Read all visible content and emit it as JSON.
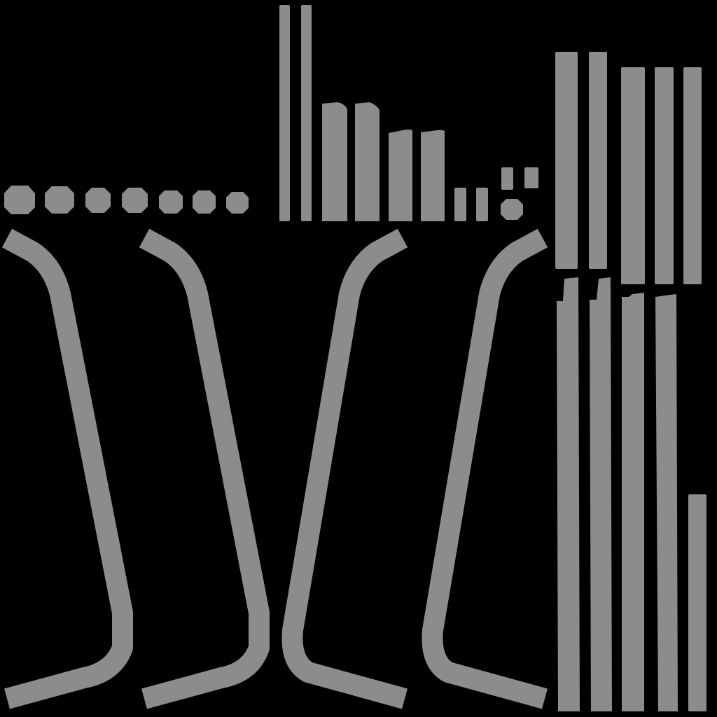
{
  "colors": {
    "background": "#000000",
    "island": "#8c8c8c"
  },
  "texture": {
    "kind": "uv-island-layout",
    "groups": [
      {
        "name": "octagon-dots",
        "count": 7
      },
      {
        "name": "thin-strips",
        "count": 2
      },
      {
        "name": "stepped-bars",
        "count": 6
      },
      {
        "name": "small-squares",
        "count": 3
      },
      {
        "name": "curved-legs",
        "count": 4
      },
      {
        "name": "tall-strips-upper",
        "count": 5
      },
      {
        "name": "tall-strips-lower",
        "count": 5
      }
    ]
  }
}
